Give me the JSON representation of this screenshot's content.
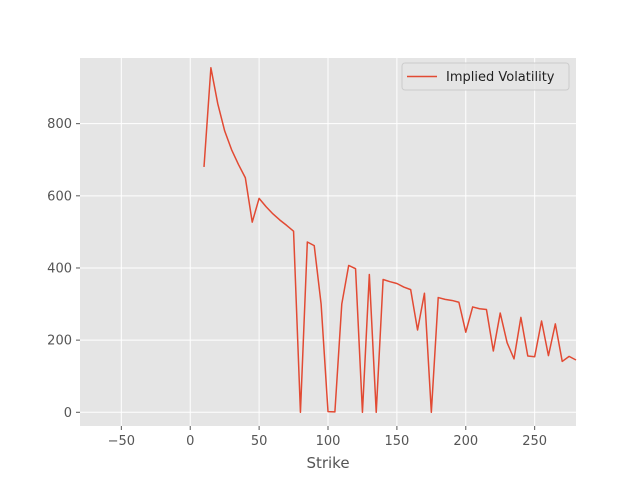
{
  "chart_data": {
    "type": "line",
    "title": "",
    "xlabel": "Strike",
    "ylabel": "",
    "xlim": [
      -80,
      280
    ],
    "ylim": [
      -38,
      982
    ],
    "xticks": [
      -50,
      0,
      50,
      100,
      150,
      200,
      250
    ],
    "yticks": [
      0,
      200,
      400,
      600,
      800
    ],
    "grid": true,
    "legend_position": "top-right",
    "series": [
      {
        "name": "Implied Volatility",
        "color": "#e24a33",
        "x": [
          10,
          15,
          20,
          25,
          30,
          35,
          40,
          45,
          50,
          55,
          60,
          65,
          70,
          75,
          80,
          85,
          90,
          95,
          100,
          105,
          110,
          115,
          120,
          125,
          130,
          135,
          140,
          145,
          150,
          155,
          160,
          165,
          170,
          175,
          180,
          185,
          190,
          195,
          200,
          205,
          210,
          215,
          220,
          225,
          230,
          235,
          240,
          245,
          250,
          255,
          260,
          265,
          270,
          275,
          280
        ],
        "y": [
          680,
          955,
          855,
          780,
          728,
          687,
          650,
          527,
          593,
          570,
          550,
          533,
          518,
          502,
          0,
          472,
          462,
          300,
          2,
          1,
          300,
          407,
          398,
          0,
          382,
          0,
          368,
          362,
          357,
          347,
          340,
          228,
          330,
          0,
          318,
          313,
          310,
          305,
          222,
          292,
          287,
          285,
          170,
          275,
          193,
          148,
          263,
          156,
          154,
          253,
          157,
          245,
          141,
          155,
          145
        ]
      }
    ]
  }
}
